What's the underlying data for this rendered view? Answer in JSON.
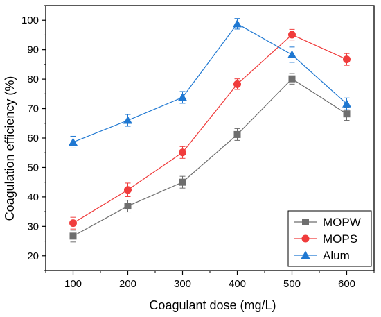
{
  "chart_data": {
    "type": "line",
    "title": "",
    "xlabel": "Coagulant dose (mg/L)",
    "ylabel": "Coagulation efficiency (%)",
    "x": [
      100,
      200,
      300,
      400,
      500,
      600
    ],
    "xlim": [
      50,
      650
    ],
    "ylim": [
      15,
      105
    ],
    "xticks": [
      "100",
      "200",
      "300",
      "400",
      "500",
      "600"
    ],
    "yticks": [
      "20",
      "30",
      "40",
      "50",
      "60",
      "70",
      "80",
      "90",
      "100"
    ],
    "grid": false,
    "legend_position": "bottom-right",
    "series": [
      {
        "name": "MOPW",
        "color": "#6e6e6e",
        "marker": "square",
        "values": [
          26.7,
          36.9,
          45.0,
          61.2,
          80.1,
          68.2
        ],
        "errors": [
          2.0,
          2.0,
          2.0,
          2.0,
          1.8,
          2.2
        ]
      },
      {
        "name": "MOPS",
        "color": "#f03c3c",
        "marker": "circle",
        "values": [
          31.1,
          42.4,
          55.1,
          78.3,
          95.1,
          86.7
        ],
        "errors": [
          2.0,
          2.3,
          2.0,
          1.8,
          1.8,
          2.0
        ]
      },
      {
        "name": "Alum",
        "color": "#1f78d2",
        "marker": "triangle",
        "values": [
          58.6,
          66.0,
          73.8,
          98.8,
          88.3,
          71.6
        ],
        "errors": [
          2.0,
          2.0,
          2.0,
          1.8,
          2.6,
          2.0
        ]
      }
    ]
  }
}
